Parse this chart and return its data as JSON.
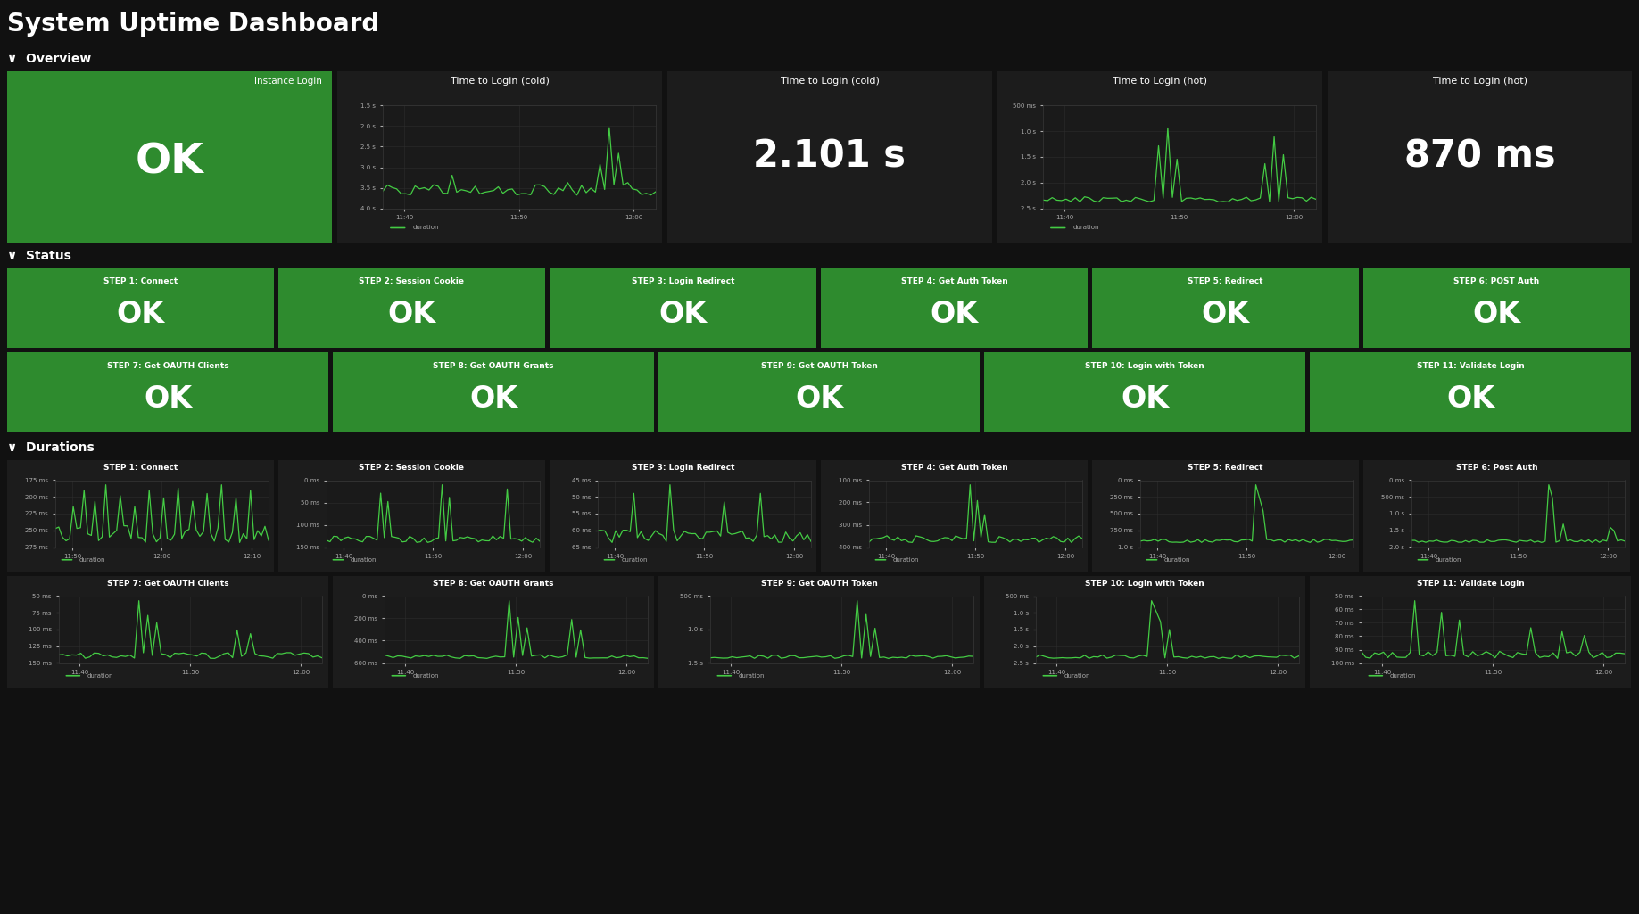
{
  "title": "System Uptime Dashboard",
  "bg_color": "#111111",
  "panel_bg_dark": "#1c1c1c",
  "panel_bg_green": "#2e8b2e",
  "text_color_white": "#ffffff",
  "text_color_light": "#aaaaaa",
  "line_color": "#44cc44",
  "grid_color": "#2a2a2a",
  "status_panels_row1": [
    "STEP 1: Connect",
    "STEP 2: Session Cookie",
    "STEP 3: Login Redirect",
    "STEP 4: Get Auth Token",
    "STEP 5: Redirect",
    "STEP 6: POST Auth"
  ],
  "status_panels_row2": [
    "STEP 7: Get OAUTH Clients",
    "STEP 8: Get OAUTH Grants",
    "STEP 9: Get OAUTH Token",
    "STEP 10: Login with Token",
    "STEP 11: Validate Login"
  ],
  "duration_panels_row1": [
    {
      "title": "STEP 1: Connect",
      "yticks": [
        "275 ms",
        "250 ms",
        "225 ms",
        "200 ms",
        "175 ms"
      ],
      "xticks": [
        "11:50",
        "12:00",
        "12:10"
      ]
    },
    {
      "title": "STEP 2: Session Cookie",
      "yticks": [
        "150 ms",
        "100 ms",
        "50 ms",
        "0 ms"
      ],
      "xticks": [
        "11:40",
        "11:50",
        "12:00"
      ]
    },
    {
      "title": "STEP 3: Login Redirect",
      "yticks": [
        "65 ms",
        "60 ms",
        "55 ms",
        "50 ms",
        "45 ms"
      ],
      "xticks": [
        "11:40",
        "11:50",
        "12:00"
      ]
    },
    {
      "title": "STEP 4: Get Auth Token",
      "yticks": [
        "400 ms",
        "300 ms",
        "200 ms",
        "100 ms"
      ],
      "xticks": [
        "11:40",
        "11:50",
        "12:00"
      ]
    },
    {
      "title": "STEP 5: Redirect",
      "yticks": [
        "1.0 s",
        "750 ms",
        "500 ms",
        "250 ms",
        "0 ms"
      ],
      "xticks": [
        "11:40",
        "11:50",
        "12:00"
      ]
    },
    {
      "title": "STEP 6: Post Auth",
      "yticks": [
        "2.0 s",
        "1.5 s",
        "1.0 s",
        "500 ms",
        "0 ms"
      ],
      "xticks": [
        "11:40",
        "11:50",
        "12:00"
      ]
    }
  ],
  "duration_panels_row2": [
    {
      "title": "STEP 7: Get OAUTH Clients",
      "yticks": [
        "150 ms",
        "125 ms",
        "100 ms",
        "75 ms",
        "50 ms"
      ],
      "xticks": [
        "11:40",
        "11:50",
        "12:00"
      ]
    },
    {
      "title": "STEP 8: Get OAUTH Grants",
      "yticks": [
        "600 ms",
        "400 ms",
        "200 ms",
        "0 ms"
      ],
      "xticks": [
        "11:40",
        "11:50",
        "12:00"
      ]
    },
    {
      "title": "STEP 9: Get OAUTH Token",
      "yticks": [
        "1.5 s",
        "1.0 s",
        "500 ms"
      ],
      "xticks": [
        "11:40",
        "11:50",
        "12:00"
      ]
    },
    {
      "title": "STEP 10: Login with Token",
      "yticks": [
        "2.5 s",
        "2.0 s",
        "1.5 s",
        "1.0 s",
        "500 ms"
      ],
      "xticks": [
        "11:40",
        "11:50",
        "12:00"
      ]
    },
    {
      "title": "STEP 11: Validate Login",
      "yticks": [
        "100 ms",
        "90 ms",
        "80 ms",
        "70 ms",
        "60 ms",
        "50 ms"
      ],
      "xticks": [
        "11:40",
        "11:50",
        "12:00"
      ]
    }
  ]
}
